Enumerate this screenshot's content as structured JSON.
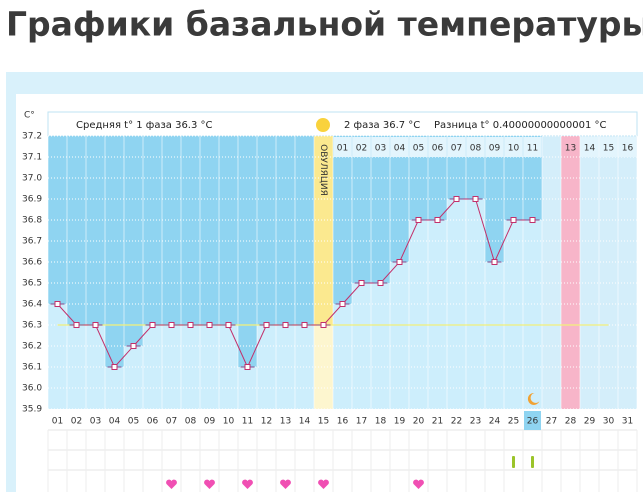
{
  "chart_data": {
    "type": "line",
    "title": "Графики базальной температуры",
    "y_axis_label": "C°",
    "phase1_text": "Средняя t° 1 фаза 36.3 °C",
    "phase2_text": "2 фаза 36.7 °C",
    "difference_text": "Разница t° 0.40000000000001 °C",
    "annotation": "ОВУЛЯЦИЯ",
    "categories": [
      "01",
      "02",
      "03",
      "04",
      "05",
      "06",
      "07",
      "08",
      "09",
      "10",
      "11",
      "12",
      "13",
      "14",
      "15",
      "16",
      "17",
      "18",
      "19",
      "20",
      "21",
      "22",
      "23",
      "24",
      "25",
      "26",
      "27",
      "28",
      "29",
      "30",
      "31"
    ],
    "phase2_days": [
      null,
      null,
      null,
      null,
      null,
      null,
      null,
      null,
      null,
      null,
      null,
      null,
      null,
      null,
      null,
      "01",
      "02",
      "03",
      "04",
      "05",
      "06",
      "07",
      "08",
      "09",
      "10",
      "11",
      null,
      "13",
      "14",
      "15",
      "16"
    ],
    "values": [
      36.4,
      36.3,
      36.3,
      36.1,
      36.2,
      36.3,
      36.3,
      36.3,
      36.3,
      36.3,
      36.1,
      36.3,
      36.3,
      36.3,
      36.3,
      36.4,
      36.5,
      36.5,
      36.6,
      36.8,
      36.8,
      36.9,
      36.9,
      36.6,
      36.8,
      36.8,
      null,
      null,
      null,
      null,
      null
    ],
    "coverline": 36.3,
    "ylim": [
      35.9,
      37.2
    ],
    "yticks": [
      35.9,
      {
        "value": 36.0,
        "label": "36.0"
      },
      36.1,
      36.2,
      36.3,
      36.4,
      36.5,
      36.6,
      36.7,
      36.8,
      36.9,
      {
        "value": 37.0,
        "label": "37.0"
      },
      37.1,
      37.2
    ],
    "color": "#c2306b",
    "grid": true
  }
}
